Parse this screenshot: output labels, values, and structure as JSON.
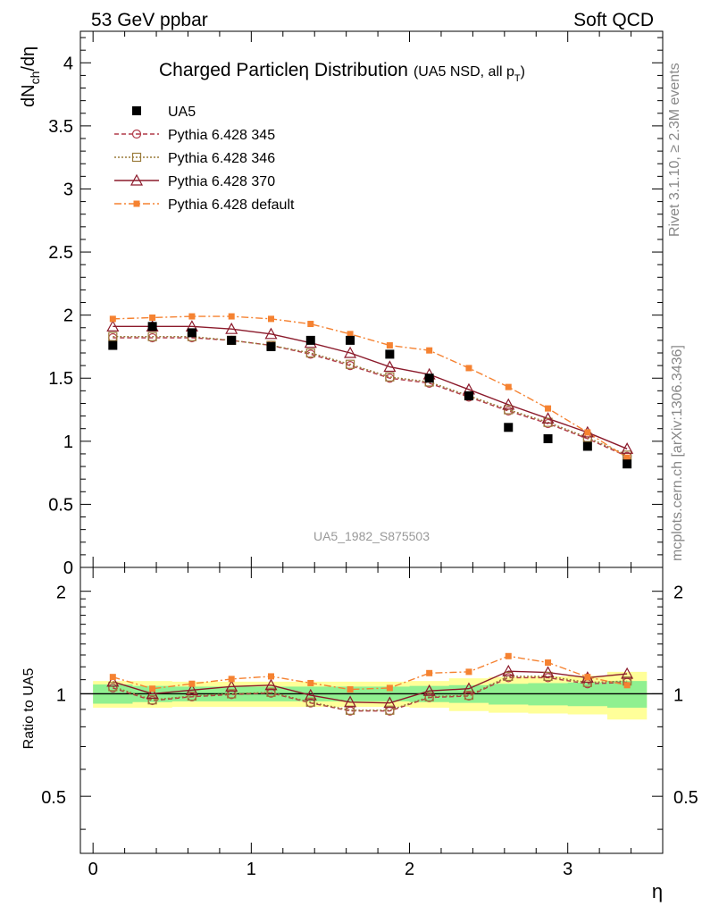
{
  "header": {
    "left": "53 GeV ppbar",
    "right": "Soft QCD"
  },
  "side_labels": {
    "rivet": "Rivet 3.1.10, ≥ 2.3M events",
    "mcplots": "mcplots.cern.ch [arXiv:1306.3436]"
  },
  "watermark": "UA5_1982_S875503",
  "colors": {
    "data": "#000000",
    "p345": "#b03a48",
    "p346": "#9a7b3a",
    "p370": "#8b1a2b",
    "pdefault": "#f58231",
    "band_inner": "#90f090",
    "band_outer": "#ffff99"
  },
  "chart_data": [
    {
      "type": "line",
      "title_main": "Charged Particleη Distribution",
      "title_sub": "(UA5 NSD, all p",
      "title_sub_sub": "T",
      "title_sub_end": ")",
      "ylabel": "dN",
      "ylabel_sub": "ch",
      "ylabel_end": "/dη",
      "xlim": [
        -0.08,
        3.6
      ],
      "ylim": [
        0,
        4.25
      ],
      "yticks": [
        0,
        0.5,
        1,
        1.5,
        2,
        2.5,
        3,
        3.5,
        4
      ],
      "ytick_labels": [
        "0",
        "0.5",
        "1",
        "1.5",
        "2",
        "2.5",
        "3",
        "3.5",
        "4"
      ],
      "x": [
        0.125,
        0.375,
        0.625,
        0.875,
        1.125,
        1.375,
        1.625,
        1.875,
        2.125,
        2.375,
        2.625,
        2.875,
        3.125,
        3.375
      ],
      "legend_placement": "top-left",
      "series": [
        {
          "name": "UA5",
          "key": "data",
          "marker": "square",
          "values": [
            1.76,
            1.91,
            1.86,
            1.8,
            1.75,
            1.8,
            1.8,
            1.69,
            1.5,
            1.36,
            1.11,
            1.02,
            0.96,
            0.82
          ]
        },
        {
          "name": "Pythia 6.428 345",
          "key": "p345",
          "marker": "circle",
          "dash": "5,3",
          "values": [
            1.82,
            1.82,
            1.82,
            1.8,
            1.76,
            1.69,
            1.6,
            1.5,
            1.46,
            1.35,
            1.24,
            1.14,
            1.02,
            0.88
          ]
        },
        {
          "name": "Pythia 6.428 346",
          "key": "p346",
          "marker": "square-open",
          "dash": "2,2",
          "values": [
            1.83,
            1.83,
            1.83,
            1.8,
            1.76,
            1.7,
            1.61,
            1.51,
            1.47,
            1.36,
            1.25,
            1.15,
            1.03,
            0.89
          ]
        },
        {
          "name": "Pythia 6.428 370",
          "key": "p370",
          "marker": "triangle",
          "dash": "",
          "values": [
            1.91,
            1.91,
            1.91,
            1.89,
            1.85,
            1.78,
            1.7,
            1.59,
            1.53,
            1.41,
            1.29,
            1.18,
            1.07,
            0.94
          ]
        },
        {
          "name": "Pythia 6.428 default",
          "key": "pdefault",
          "marker": "square-small",
          "dash": "8,3,2,3",
          "values": [
            1.97,
            1.98,
            1.99,
            1.99,
            1.97,
            1.93,
            1.85,
            1.76,
            1.72,
            1.58,
            1.43,
            1.26,
            1.07,
            0.87
          ]
        }
      ]
    },
    {
      "type": "line",
      "ylabel": "Ratio to UA5",
      "xlabel": "η",
      "xlim": [
        -0.08,
        3.6
      ],
      "ylim": [
        0.34,
        2.35
      ],
      "log_y": true,
      "yticks": [
        0.5,
        1,
        2
      ],
      "ytick_labels": [
        "0.5",
        "1",
        "2"
      ],
      "xticks": [
        0,
        1,
        2,
        3
      ],
      "xtick_labels": [
        "0",
        "1",
        "2",
        "3"
      ],
      "band_inner": [
        0.065,
        0.055,
        0.05,
        0.05,
        0.05,
        0.05,
        0.05,
        0.05,
        0.055,
        0.06,
        0.07,
        0.075,
        0.08,
        0.09
      ],
      "band_outer": [
        0.09,
        0.09,
        0.085,
        0.085,
        0.085,
        0.085,
        0.085,
        0.085,
        0.09,
        0.11,
        0.12,
        0.125,
        0.13,
        0.16
      ],
      "series": [
        {
          "name": "Pythia 6.428 345",
          "key": "p345",
          "values": [
            1.04,
            0.955,
            0.98,
            0.995,
            1.005,
            0.94,
            0.89,
            0.89,
            0.975,
            0.985,
            1.115,
            1.115,
            1.07,
            1.08
          ]
        },
        {
          "name": "Pythia 6.428 346",
          "key": "p346",
          "values": [
            1.05,
            0.96,
            0.985,
            1.0,
            1.01,
            0.945,
            0.895,
            0.895,
            0.98,
            0.99,
            1.125,
            1.125,
            1.08,
            1.09
          ]
        },
        {
          "name": "Pythia 6.428 370",
          "key": "p370",
          "values": [
            1.085,
            1.0,
            1.025,
            1.05,
            1.06,
            0.99,
            0.945,
            0.94,
            1.02,
            1.035,
            1.165,
            1.155,
            1.115,
            1.145
          ]
        },
        {
          "name": "Pythia 6.428 default",
          "key": "pdefault",
          "values": [
            1.12,
            1.035,
            1.07,
            1.105,
            1.125,
            1.075,
            1.03,
            1.04,
            1.15,
            1.16,
            1.29,
            1.235,
            1.12,
            1.06
          ]
        }
      ]
    }
  ]
}
